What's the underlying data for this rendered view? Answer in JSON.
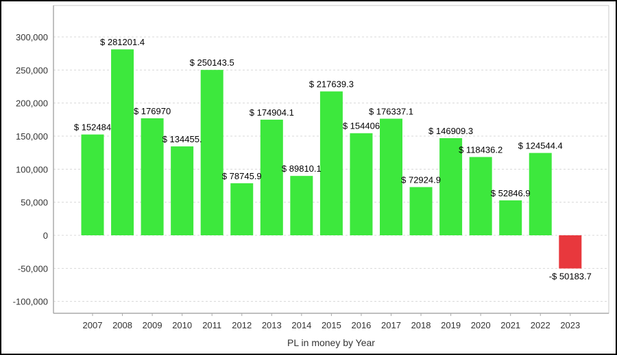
{
  "chart_data": {
    "type": "bar",
    "title": "",
    "xlabel": "PL in money by Year",
    "ylabel": "",
    "categories": [
      "2007",
      "2008",
      "2009",
      "2010",
      "2011",
      "2012",
      "2013",
      "2014",
      "2015",
      "2016",
      "2017",
      "2018",
      "2019",
      "2020",
      "2021",
      "2022",
      "2023"
    ],
    "values": [
      152484,
      281201.4,
      176970,
      134455,
      250143.5,
      78745.9,
      174904.1,
      89810.1,
      217639.3,
      154406,
      176337.1,
      72924.9,
      146909.3,
      118436.2,
      52846.9,
      124544.4,
      -50183.7
    ],
    "data_labels": [
      "$ 152484",
      "$ 281201.4",
      "$ 176970",
      "$ 134455.",
      "$ 250143.5",
      "$ 78745.9",
      "$ 174904.1",
      "$ 89810.1",
      "$ 217639.3",
      "$ 154406",
      "$ 176337.1",
      "$ 72924.9",
      "$ 146909.3",
      "$ 118436.2",
      "$ 52846.9",
      "$ 124544.4",
      "-$ 50183.7"
    ],
    "ylim": [
      -120000,
      345000
    ],
    "yticks": [
      -100000,
      -50000,
      0,
      50000,
      100000,
      150000,
      200000,
      250000,
      300000
    ],
    "ytick_labels": [
      "-100,000",
      "-50,000",
      "0",
      "50,000",
      "100,000",
      "150,000",
      "200,000",
      "250,000",
      "300,000"
    ],
    "grid": true,
    "legend": "none",
    "colors": {
      "positive": "#3de83d",
      "negative": "#e8383d",
      "grid": "#d8d8d8",
      "axis": "#aaaaaa"
    }
  }
}
